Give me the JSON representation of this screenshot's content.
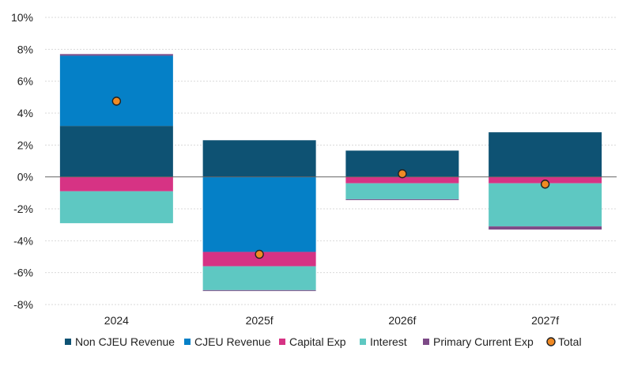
{
  "chart_data": {
    "type": "bar",
    "stacked": true,
    "categories": [
      "2024",
      "2025f",
      "2026f",
      "2027f"
    ],
    "ylim": [
      -8,
      10
    ],
    "yticks": [
      -8,
      -6,
      -4,
      -2,
      0,
      2,
      4,
      6,
      8,
      10
    ],
    "ytick_labels": [
      "-8%",
      "-6%",
      "-4%",
      "-2%",
      "0%",
      "2%",
      "4%",
      "6%",
      "8%",
      "10%"
    ],
    "grid": true,
    "legend_position": "bottom",
    "series": [
      {
        "name": "Non CJEU Revenue",
        "color": "#0e5273",
        "values": [
          3.2,
          2.3,
          1.65,
          2.8
        ]
      },
      {
        "name": "CJEU Revenue",
        "color": "#0580c7",
        "values": [
          4.4,
          -4.7,
          0.0,
          0.0
        ]
      },
      {
        "name": "Capital Exp",
        "color": "#d63384",
        "values": [
          -0.9,
          -0.9,
          -0.4,
          -0.4
        ]
      },
      {
        "name": "Interest",
        "color": "#5ec8c2",
        "values": [
          -2.0,
          -1.5,
          -1.0,
          -2.7
        ]
      },
      {
        "name": "Primary Current Exp",
        "color": "#7d4a87",
        "values": [
          0.1,
          -0.05,
          -0.05,
          -0.2
        ]
      }
    ],
    "total": {
      "name": "Total",
      "color": "#f08a24",
      "values": [
        4.75,
        -4.85,
        0.2,
        -0.45
      ]
    }
  }
}
